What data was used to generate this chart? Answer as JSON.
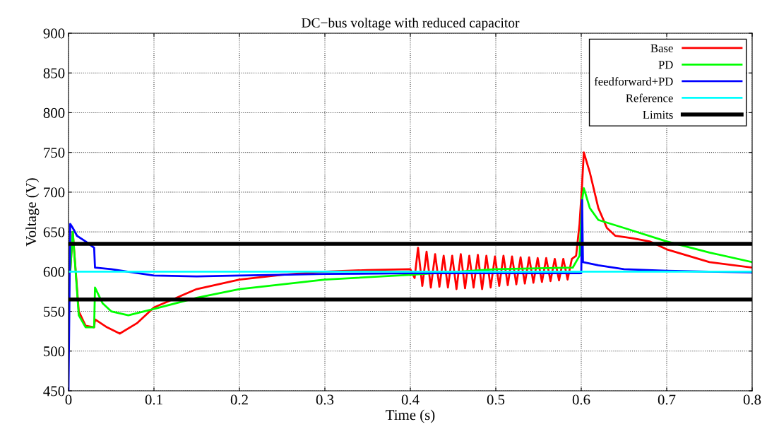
{
  "chart_data": {
    "type": "line",
    "title": "DC−bus voltage with reduced capacitor",
    "xlabel": "Time (s)",
    "ylabel": "Voltage (V)",
    "xlim": [
      0,
      0.8
    ],
    "ylim": [
      450,
      900
    ],
    "xticks": [
      0,
      0.1,
      0.2,
      0.3,
      0.4,
      0.5,
      0.6,
      0.7,
      0.8
    ],
    "yticks": [
      450,
      500,
      550,
      600,
      650,
      700,
      750,
      800,
      850,
      900
    ],
    "grid": true,
    "legend": "top right",
    "line_style": "solid",
    "marker": "none",
    "series": [
      {
        "name": "Base",
        "color": "#ff0000",
        "x": [
          0.002,
          0.005,
          0.012,
          0.02,
          0.03,
          0.031,
          0.045,
          0.06,
          0.08,
          0.1,
          0.15,
          0.2,
          0.25,
          0.3,
          0.35,
          0.4,
          0.405,
          0.409,
          0.414,
          0.419,
          0.424,
          0.429,
          0.434,
          0.439,
          0.444,
          0.449,
          0.454,
          0.459,
          0.464,
          0.469,
          0.474,
          0.479,
          0.484,
          0.489,
          0.494,
          0.499,
          0.504,
          0.509,
          0.514,
          0.519,
          0.524,
          0.529,
          0.534,
          0.539,
          0.544,
          0.549,
          0.554,
          0.559,
          0.564,
          0.569,
          0.574,
          0.579,
          0.584,
          0.589,
          0.594,
          0.598,
          0.601,
          0.603,
          0.61,
          0.62,
          0.63,
          0.64,
          0.66,
          0.68,
          0.7,
          0.75,
          0.8
        ],
        "values": [
          600,
          650,
          550,
          532,
          530,
          540,
          530,
          522,
          535,
          555,
          578,
          590,
          596,
          600,
          602,
          603,
          592,
          630,
          582,
          625,
          580,
          622,
          581,
          620,
          580,
          620,
          578,
          622,
          579,
          620,
          580,
          621,
          578,
          620,
          580,
          619,
          582,
          620,
          583,
          619,
          584,
          618,
          585,
          618,
          586,
          617,
          587,
          617,
          588,
          616,
          589,
          616,
          590,
          616,
          620,
          660,
          710,
          750,
          725,
          680,
          655,
          645,
          642,
          638,
          628,
          612,
          605
        ]
      },
      {
        "name": "PD",
        "color": "#00ff00",
        "x": [
          0.002,
          0.005,
          0.012,
          0.02,
          0.03,
          0.031,
          0.04,
          0.05,
          0.07,
          0.1,
          0.15,
          0.2,
          0.3,
          0.4,
          0.5,
          0.59,
          0.598,
          0.601,
          0.603,
          0.61,
          0.62,
          0.65,
          0.7,
          0.75,
          0.8
        ],
        "values": [
          600,
          650,
          545,
          530,
          530,
          580,
          560,
          550,
          545,
          553,
          567,
          578,
          590,
          596,
          603,
          605,
          620,
          690,
          705,
          680,
          665,
          655,
          638,
          624,
          612
        ]
      },
      {
        "name": "feedforward+PD",
        "color": "#0000ff",
        "x": [
          0,
          0.002,
          0.005,
          0.01,
          0.02,
          0.03,
          0.031,
          0.05,
          0.1,
          0.15,
          0.2,
          0.3,
          0.4,
          0.5,
          0.6,
          0.601,
          0.602,
          0.62,
          0.65,
          0.7,
          0.75,
          0.8
        ],
        "values": [
          450,
          660,
          655,
          645,
          638,
          630,
          605,
          603,
          595,
          594,
          595,
          597,
          598,
          598,
          598,
          690,
          612,
          608,
          603,
          601,
          600,
          599
        ]
      },
      {
        "name": "Reference",
        "color": "#00ffff",
        "x": [
          0,
          0.8
        ],
        "values": [
          600,
          600
        ]
      }
    ],
    "ref_lines": [
      {
        "axis": "y",
        "value": 635,
        "label": "Limits",
        "color": "#000000"
      },
      {
        "axis": "y",
        "value": 565,
        "color": "#000000"
      }
    ]
  }
}
